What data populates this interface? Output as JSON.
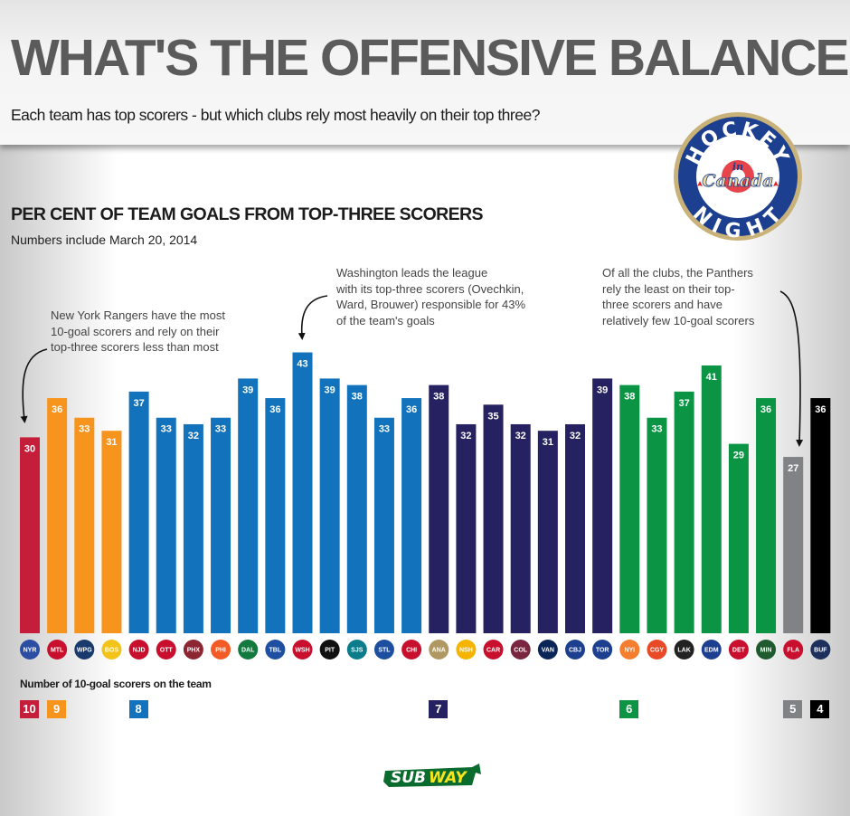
{
  "header": {
    "title": "WHAT'S THE OFFENSIVE BALANCE?",
    "subtitle": "Each team has top scorers - but which clubs rely most heavily on their top three?"
  },
  "logos": {
    "hnic": {
      "line1": "HOCKEY",
      "line2": "in",
      "line3": "Canada",
      "line4": "NIGHT"
    },
    "sponsor": {
      "sub": "SUB",
      "way": "WAY"
    }
  },
  "annotations": {
    "rangers": [
      "New York Rangers have the most",
      "10-goal scorers and rely on their",
      "top-three scorers less than most"
    ],
    "washington": [
      "Washington leads the league",
      "with its top-three scorers (Ovechkin,",
      "Ward, Brouwer) responsible for 43%",
      "of the team's goals"
    ],
    "panthers": [
      "Of all the clubs, the Panthers",
      "rely the least on their top-",
      "three scorers and have",
      "relatively few 10-goal scorers"
    ]
  },
  "colors": {
    "10": "#c41e3a",
    "9": "#f7941d",
    "8": "#1272bb",
    "7": "#262262",
    "6": "#0b9444",
    "5": "#818285",
    "4": "#000000"
  },
  "chart_data": {
    "type": "bar",
    "title": "PER CENT OF TEAM GOALS FROM TOP-THREE SCORERS",
    "subtitle": "Numbers include March 20, 2014",
    "xlabel": "",
    "ylabel": "Per cent of team goals",
    "ylim": [
      0,
      45
    ],
    "grid": false,
    "categories": [
      "Rangers",
      "Canadiens",
      "Jets",
      "Bruins",
      "Devils",
      "Senators",
      "Coyotes",
      "Flyers",
      "Stars",
      "Lightning",
      "Capitals",
      "Penguins",
      "Sharks",
      "Blues",
      "Blackhawks",
      "Ducks",
      "Predators",
      "Hurricanes",
      "Avalanche",
      "Canucks",
      "Blue Jackets",
      "Maple Leafs",
      "Islanders",
      "Flames",
      "Kings",
      "Oilers",
      "Red Wings",
      "Wild",
      "Panthers",
      "Sabres"
    ],
    "logo_abbr": [
      "NYR",
      "MTL",
      "WPG",
      "BOS",
      "NJD",
      "OTT",
      "PHX",
      "PHI",
      "DAL",
      "TBL",
      "WSH",
      "PIT",
      "SJS",
      "STL",
      "CHI",
      "ANA",
      "NSH",
      "CAR",
      "COL",
      "VAN",
      "CBJ",
      "TOR",
      "NYI",
      "CGY",
      "LAK",
      "EDM",
      "DET",
      "MIN",
      "FLA",
      "BUF"
    ],
    "values": [
      30,
      36,
      33,
      31,
      37,
      33,
      32,
      33,
      39,
      36,
      43,
      39,
      38,
      33,
      36,
      38,
      32,
      35,
      32,
      31,
      32,
      39,
      38,
      33,
      37,
      41,
      29,
      36,
      27,
      36
    ],
    "ten_goal_scorers": [
      10,
      9,
      9,
      9,
      8,
      8,
      8,
      8,
      8,
      8,
      8,
      8,
      8,
      8,
      8,
      7,
      7,
      7,
      7,
      7,
      7,
      7,
      6,
      6,
      6,
      6,
      6,
      6,
      5,
      4
    ],
    "legend": {
      "title": "Number of 10-goal scorers on the team",
      "entries": [
        "10",
        "9",
        "8",
        "7",
        "6",
        "5",
        "4"
      ],
      "position": "bottom"
    }
  }
}
